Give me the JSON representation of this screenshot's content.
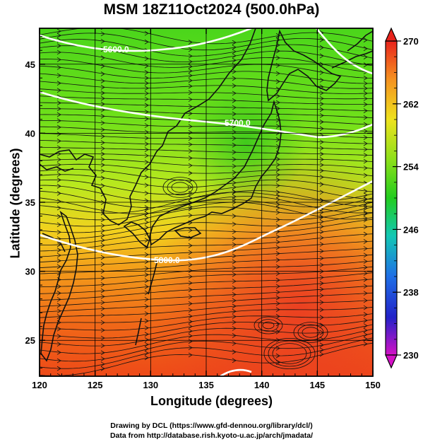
{
  "title": "MSM 18Z11Oct2024 (500.0hPa)",
  "chart_data": {
    "type": "map",
    "xlabel": "Longitude (degrees)",
    "ylabel": "Latitude  (degrees)",
    "xlim": [
      120,
      150
    ],
    "ylim": [
      22.4,
      47.6
    ],
    "x_ticks": [
      "120",
      "125",
      "130",
      "135",
      "140",
      "145",
      "150"
    ],
    "y_ticks": [
      "25",
      "30",
      "35",
      "40",
      "45"
    ],
    "grid": true,
    "colorbar": {
      "min": 230,
      "max": 270,
      "tick_labels": [
        "270",
        "262",
        "254",
        "246",
        "238",
        "230"
      ]
    },
    "contour_labels": [
      "5600.0",
      "5700.0",
      "5800.0"
    ]
  },
  "credits": {
    "line1": "Drawing by DCL (https://www.gfd-dennou.org/library/dcl/)",
    "line2": "Data from http://database.rish.kyoto-u.ac.jp/arch/jmadata/"
  }
}
